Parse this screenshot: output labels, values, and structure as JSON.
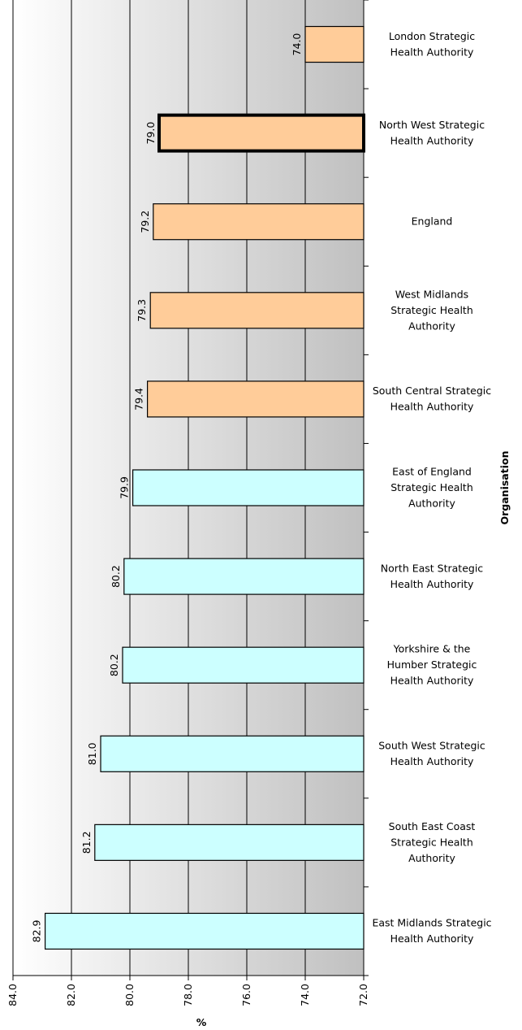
{
  "chart_data": {
    "type": "bar",
    "orientation": "horizontal",
    "xlabel": "%",
    "ylabel": "Organisation",
    "xlim": [
      72.0,
      84.0
    ],
    "x_reversed": true,
    "ticks": [
      "84.0",
      "82.0",
      "80.0",
      "78.0",
      "76.0",
      "74.0",
      "72.0"
    ],
    "tick_values": [
      84,
      82,
      80,
      78,
      76,
      74,
      72
    ],
    "grid": true,
    "legend": "none",
    "colors": {
      "highlight_group": "#ffcc99",
      "other_group": "#ccffff",
      "bar_border": "#000000",
      "background_light": "#ffffff",
      "background_dark": "#c0c0c0"
    },
    "categories": [
      {
        "label": [
          "London Strategic",
          "Health Authority"
        ],
        "value": 74.0,
        "value_label": "74.0",
        "group": "highlight",
        "emphasis": false
      },
      {
        "label": [
          "North West Strategic",
          "Health Authority"
        ],
        "value": 79.0,
        "value_label": "79.0",
        "group": "highlight",
        "emphasis": true
      },
      {
        "label": [
          "England"
        ],
        "value": 79.2,
        "value_label": "79.2",
        "group": "highlight",
        "emphasis": false
      },
      {
        "label": [
          "West Midlands",
          "Strategic Health",
          "Authority"
        ],
        "value": 79.3,
        "value_label": "79.3",
        "group": "highlight",
        "emphasis": false
      },
      {
        "label": [
          "South Central Strategic",
          "Health Authority"
        ],
        "value": 79.4,
        "value_label": "79.4",
        "group": "highlight",
        "emphasis": false
      },
      {
        "label": [
          "East of England",
          "Strategic Health",
          "Authority"
        ],
        "value": 79.9,
        "value_label": "79.9",
        "group": "other",
        "emphasis": false
      },
      {
        "label": [
          "North East Strategic",
          "Health Authority"
        ],
        "value": 80.2,
        "value_label": "80.2",
        "group": "other",
        "emphasis": false
      },
      {
        "label": [
          "Yorkshire & the",
          "Humber Strategic",
          "Health Authority"
        ],
        "value": 80.25,
        "value_label": "80.2",
        "group": "other",
        "emphasis": false
      },
      {
        "label": [
          "South West Strategic",
          "Health Authority"
        ],
        "value": 81.0,
        "value_label": "81.0",
        "group": "other",
        "emphasis": false
      },
      {
        "label": [
          "South East Coast",
          "Strategic Health",
          "Authority"
        ],
        "value": 81.2,
        "value_label": "81.2",
        "group": "other",
        "emphasis": false
      },
      {
        "label": [
          "East Midlands Strategic",
          "Health Authority"
        ],
        "value": 82.9,
        "value_label": "82.9",
        "group": "other",
        "emphasis": false
      }
    ]
  }
}
